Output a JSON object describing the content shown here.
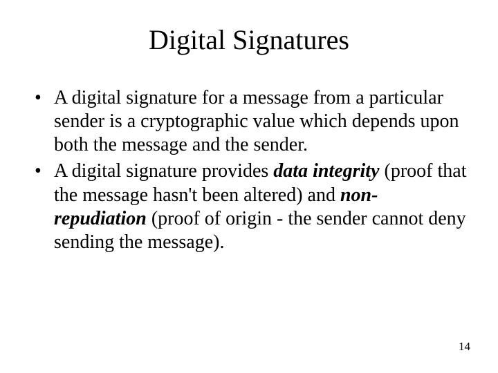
{
  "slide": {
    "title": "Digital Signatures",
    "bullets": [
      {
        "b1_a": "A digital signature for a message from a particular sender is a cryptographic value which depends upon both the message and the sender."
      },
      {
        "b2_a": "A digital signature provides ",
        "b2_term1": "data integrity",
        "b2_b": " (proof that the message hasn't been altered) and ",
        "b2_term2": "non-repudiation",
        "b2_c": " (proof of origin  - the sender cannot deny sending the message)."
      }
    ],
    "page_number": "14"
  },
  "style": {
    "background_color": "#ffffff",
    "text_color": "#000000",
    "font_family": "Times New Roman",
    "title_fontsize": 40,
    "body_fontsize": 28,
    "pagenum_fontsize": 17
  }
}
